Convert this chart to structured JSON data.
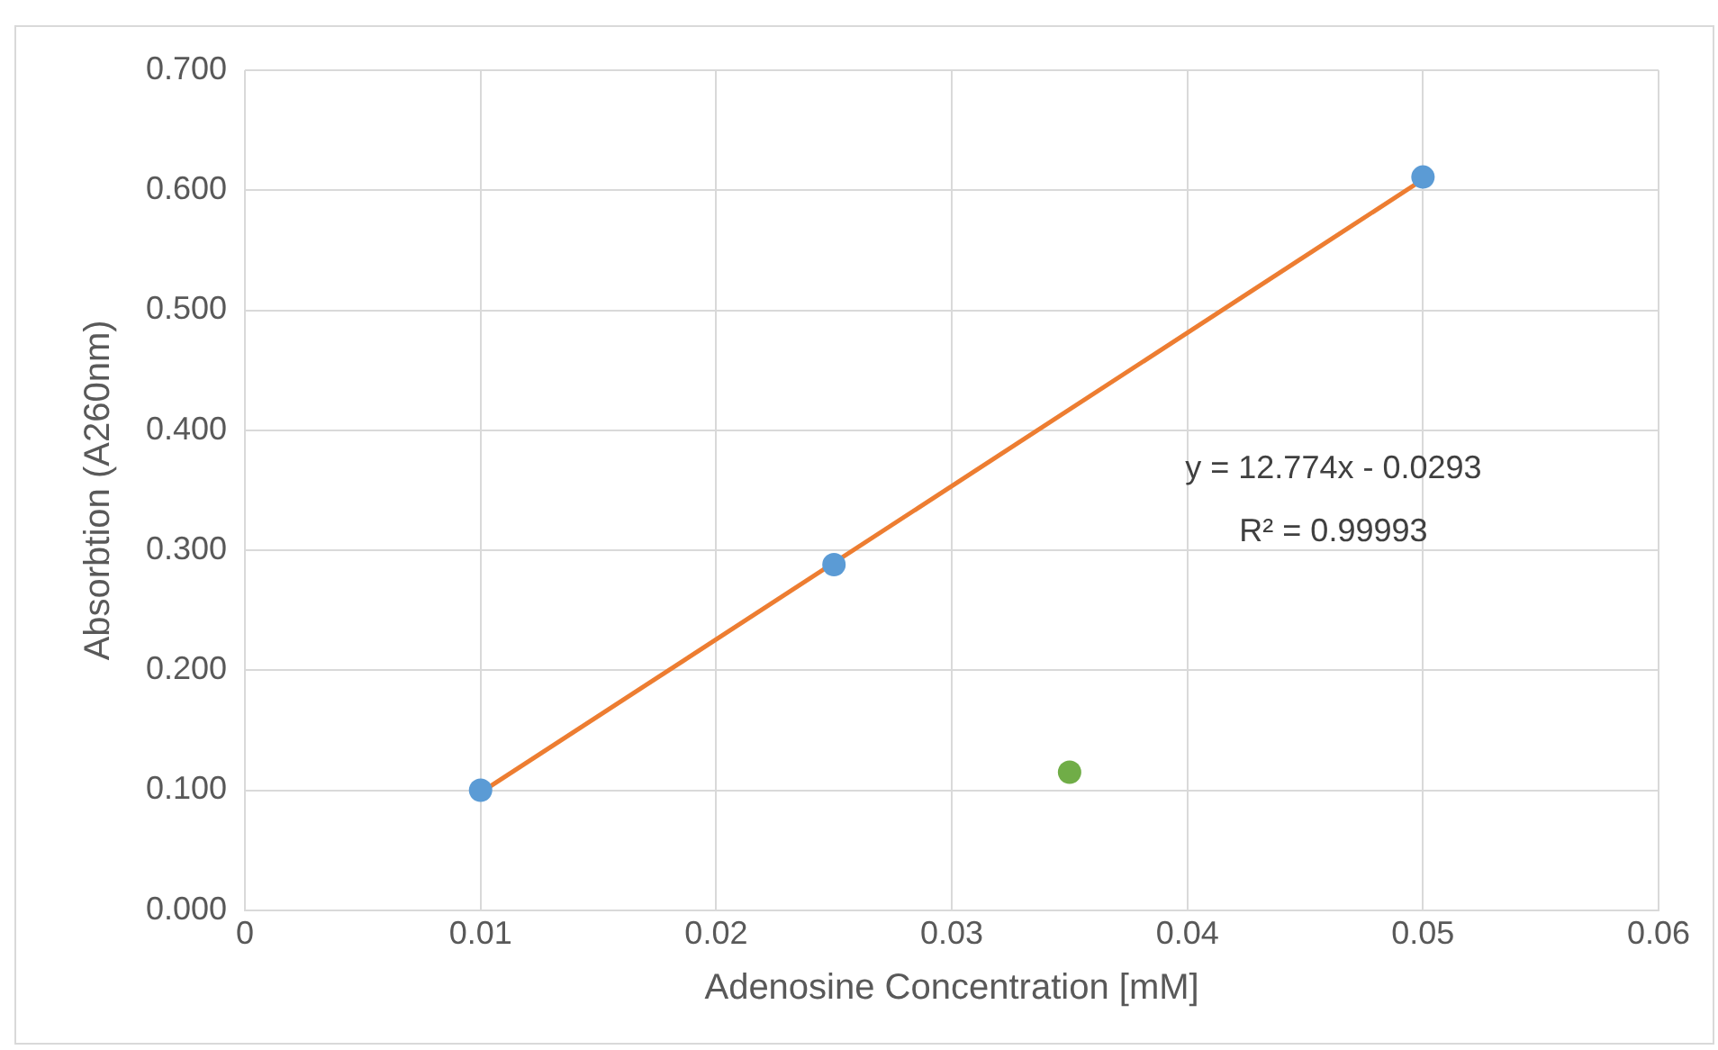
{
  "chart_data": {
    "type": "scatter",
    "xlabel": "Adenosine Concentration [mM]",
    "ylabel": "Absorbtion (A260nm)",
    "series": [
      {
        "type": "scatter",
        "color": "#5b9bd5",
        "x": [
          0.01,
          0.025,
          0.05
        ],
        "values": [
          0.1,
          0.288,
          0.611
        ],
        "marker": "circle"
      },
      {
        "type": "scatter",
        "color": "#70ad47",
        "x": [
          0.035
        ],
        "values": [
          0.115
        ],
        "marker": "circle"
      },
      {
        "type": "line",
        "color": "#ed7d31",
        "x": [
          0.01,
          0.05
        ],
        "values": [
          0.098,
          0.609
        ],
        "marker": "none",
        "line_style": "solid"
      }
    ],
    "xlim": [
      0,
      0.06
    ],
    "xticks": [
      0,
      0.01,
      0.02,
      0.03,
      0.04,
      0.05,
      0.06
    ],
    "ylim": [
      0,
      0.7
    ],
    "yticks": [
      {
        "value": 0,
        "label": "0.000"
      },
      {
        "value": 0.1,
        "label": "0.100"
      },
      {
        "value": 0.2,
        "label": "0.200"
      },
      {
        "value": 0.3,
        "label": "0.300"
      },
      {
        "value": 0.4,
        "label": "0.400"
      },
      {
        "value": 0.5,
        "label": "0.500"
      },
      {
        "value": 0.6,
        "label": "0.600"
      },
      {
        "value": 0.7,
        "label": "0.700"
      }
    ],
    "grid": true,
    "legend": false,
    "annotations": [
      "y = 12.774x - 0.0293",
      "R² = 0.99993"
    ]
  }
}
